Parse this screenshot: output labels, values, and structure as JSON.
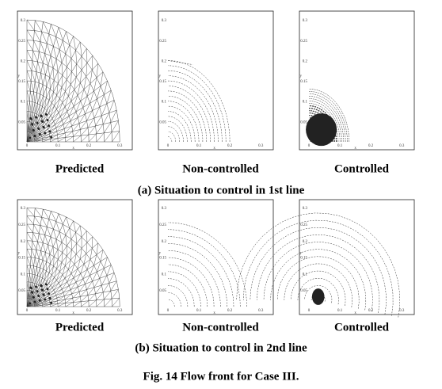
{
  "rows": [
    {
      "caption": "(a) Situation to control in 1st line",
      "plots": [
        {
          "label": "Predicted"
        },
        {
          "label": "Non-controlled"
        },
        {
          "label": "Controlled"
        }
      ]
    },
    {
      "caption": "(b) Situation to control in 2nd line",
      "plots": [
        {
          "label": "Predicted"
        },
        {
          "label": "Non-controlled"
        },
        {
          "label": "Controlled"
        }
      ]
    }
  ],
  "axes": {
    "x_label": "x",
    "y_label": "y",
    "x_ticks": [
      "0",
      "0.1",
      "0.2",
      "0.3"
    ],
    "y_ticks": [
      "0.05",
      "0.1",
      "0.15",
      "0.2",
      "0.25",
      "0.3"
    ]
  },
  "figure_caption": "Fig. 14  Flow front for Case III."
}
